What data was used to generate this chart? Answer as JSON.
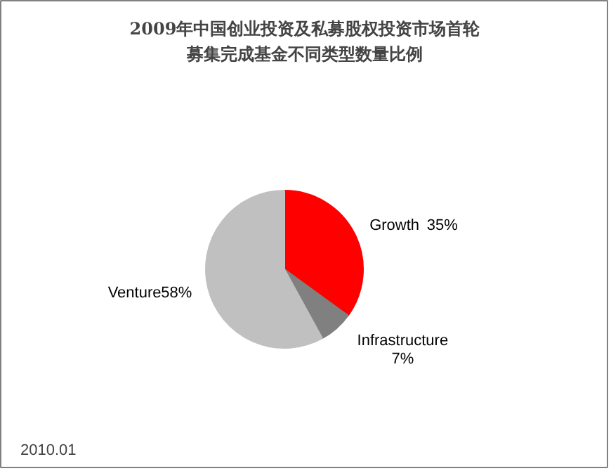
{
  "chart_data": {
    "type": "pie",
    "title": "2009年中国创业投资及私募股权投资市场首轮募集完成基金不同类型数量比例",
    "categories": [
      "Growth",
      "Infrastructure",
      "Venture"
    ],
    "values": [
      35,
      7,
      58
    ],
    "colors": [
      "#ff0000",
      "#808080",
      "#c0c0c0"
    ],
    "value_labels": [
      "35%",
      "7%",
      "58%"
    ],
    "annotations": [
      "2010.01"
    ]
  }
}
